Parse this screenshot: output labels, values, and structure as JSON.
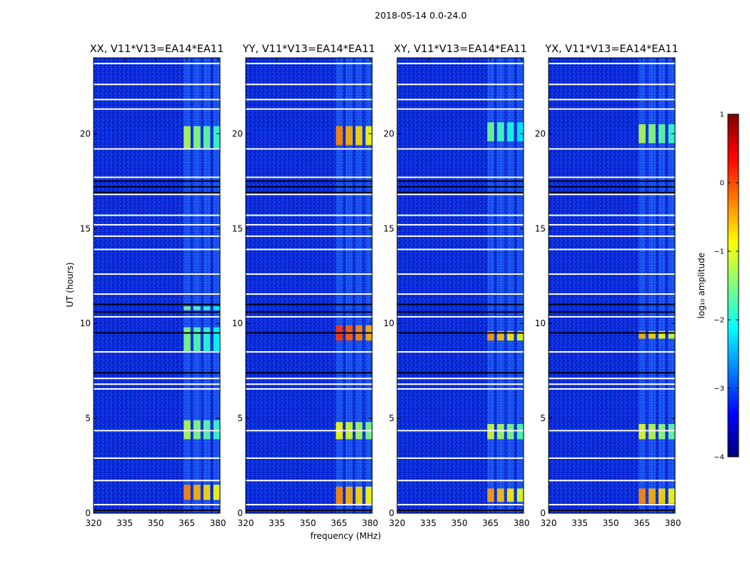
{
  "chart_data": {
    "type": "heatmap",
    "suptitle": "2018-05-14 0.0-24.0",
    "xlabel": "frequency (MHz)",
    "ylabel": "UT (hours)",
    "xlim": [
      320,
      381
    ],
    "ylim": [
      0,
      24
    ],
    "xticks": [
      320,
      335,
      350,
      365,
      380
    ],
    "yticks": [
      0,
      5,
      10,
      15,
      20
    ],
    "panels": [
      {
        "title": "XX, V11*V13=EA14*EA11",
        "rfi": [
          [
            0.7,
            1.5,
            0.74
          ],
          [
            3.9,
            4.9,
            0.55
          ],
          [
            8.5,
            9.8,
            0.5
          ],
          [
            10.7,
            10.9,
            0.5
          ],
          [
            19.2,
            20.4,
            0.55
          ]
        ]
      },
      {
        "title": "YY, V11*V13=EA14*EA11",
        "rfi": [
          [
            0.4,
            1.4,
            0.74
          ],
          [
            3.9,
            4.8,
            0.62
          ],
          [
            9.1,
            9.9,
            0.82
          ],
          [
            19.4,
            20.4,
            0.74
          ]
        ]
      },
      {
        "title": "XY, V11*V13=EA14*EA11",
        "rfi": [
          [
            0.6,
            1.3,
            0.72
          ],
          [
            3.9,
            4.7,
            0.58
          ],
          [
            9.1,
            9.6,
            0.72
          ],
          [
            19.6,
            20.6,
            0.48
          ]
        ]
      },
      {
        "title": "YX, V11*V13=EA14*EA11",
        "rfi": [
          [
            0.5,
            1.3,
            0.74
          ],
          [
            3.9,
            4.7,
            0.6
          ],
          [
            9.2,
            9.6,
            0.7
          ],
          [
            19.5,
            20.5,
            0.55
          ]
        ]
      }
    ],
    "rfi_channels_mhz": [
      [
        363.5,
        366.8
      ],
      [
        368.2,
        371.6
      ],
      [
        373.0,
        376.3
      ],
      [
        377.8,
        380.8
      ]
    ],
    "rfi_envelope_mhz": [
      363.0,
      381.0
    ],
    "flagged_hours_white": [
      0.45,
      1.72,
      2.9,
      4.35,
      6.55,
      6.8,
      7.1,
      8.5,
      10.35,
      11.55,
      12.6,
      13.9,
      14.6,
      15.2,
      15.7,
      16.8,
      17.7,
      19.2,
      21.3,
      21.8,
      22.6,
      23.7
    ],
    "flagged_hours_black": [
      0.15,
      7.4,
      9.5,
      10.6,
      11.0,
      16.9,
      17.2,
      17.5,
      19.2
    ],
    "colorbar": {
      "label": "log₁₀ amplitude",
      "range": [
        -4,
        1
      ],
      "ticks": [
        "1",
        "0",
        "−1",
        "−2",
        "−3",
        "−4"
      ],
      "colormap": "jet",
      "background_level": -3.3
    }
  },
  "colors": {
    "jet": [
      "#00007f",
      "#0000ff",
      "#007fff",
      "#00ffff",
      "#7fff7f",
      "#ffff00",
      "#ff7f00",
      "#ff0000",
      "#7f0000"
    ]
  }
}
